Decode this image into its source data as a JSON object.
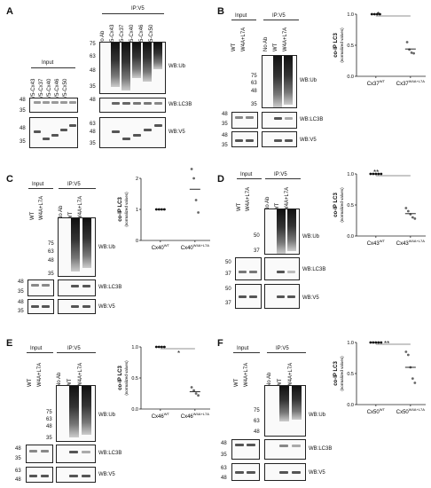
{
  "panels": {
    "A": {
      "label": "A",
      "input_header": "Input",
      "ip_header": "IP:V5",
      "input_lanes": [
        "V5-Cx43",
        "V5-Cx37",
        "V5-Cx40",
        "V5-Cx46",
        "V5-Cx50"
      ],
      "ip_lanes": [
        "No Ab",
        "V5-Cx43",
        "V5-Cx37",
        "V5-Cx40",
        "V5-Cx46",
        "V5-Cx50"
      ],
      "wb": [
        "WB:Ub",
        "WB:LC3B",
        "WB:V5"
      ],
      "mw_ub": [
        "75",
        "63",
        "48",
        "35"
      ],
      "mw_lc3": [
        "48",
        "35"
      ],
      "mw_v5_input": [
        "48",
        "35"
      ],
      "mw_v5_ip": [
        "63",
        "48",
        "35"
      ],
      "mw_lc3_input": [
        "48"
      ],
      "mw_v5_ip2": [
        "63",
        "48",
        "35"
      ]
    },
    "B": {
      "label": "B",
      "input_header": "Input",
      "ip_header": "IP:V5",
      "lanes": [
        "WT",
        "W4A+L7A",
        "No Ab",
        "WT",
        "W4A+L7A"
      ],
      "mw_ub": [
        "75",
        "63",
        "48",
        "35"
      ],
      "mw_lc3": [
        "48",
        "35"
      ],
      "mw_v5": [
        "48",
        "35"
      ],
      "wb": [
        "WB:Ub",
        "WB:LC3B",
        "WB:V5"
      ],
      "sig": "*"
    },
    "C": {
      "label": "C",
      "input_header": "Input",
      "ip_header": "IP:V5",
      "lanes": [
        "WT",
        "W4A+L7A",
        "No Ab",
        "WT",
        "W4A+L7A"
      ],
      "mw_ub": [
        "75",
        "63",
        "48",
        "35"
      ],
      "mw_lc3": [
        "48",
        "35"
      ],
      "mw_v5": [
        "48",
        "35"
      ],
      "wb": [
        "WB:Ub",
        "WB:LC3B",
        "WB:V5"
      ]
    },
    "D": {
      "label": "D",
      "input_header": "Input",
      "ip_header": "IP:V5",
      "lanes": [
        "WT",
        "W4A+L7A",
        "No Ab",
        "WT",
        "W4A+L7A"
      ],
      "mw_ub": [
        "50",
        "37"
      ],
      "mw_lc3": [
        "50",
        "37"
      ],
      "mw_v5": [
        "50",
        "37"
      ],
      "wb": [
        "WB:Ub",
        "WB:LC3B",
        "WB:V5"
      ],
      "sig": "**"
    },
    "E": {
      "label": "E",
      "input_header": "Input",
      "ip_header": "IP:V5",
      "lanes": [
        "WT",
        "W4A+L7A",
        "No Ab",
        "WT",
        "W4A+L7A"
      ],
      "mw_ub": [
        "75",
        "63",
        "48",
        "35"
      ],
      "mw_lc3": [
        "48",
        "35"
      ],
      "mw_v5": [
        "63",
        "48"
      ],
      "wb": [
        "WB:Ub",
        "WB:LC3B",
        "WB:V5"
      ],
      "sig": "*"
    },
    "F": {
      "label": "F",
      "input_header": "Input",
      "ip_header": "IP:V5",
      "lanes": [
        "WT",
        "W4A+L7A",
        "No Ab",
        "WT",
        "W4A+L7A"
      ],
      "mw_ub": [
        "75",
        "63",
        "48"
      ],
      "mw_lc3": [
        "48",
        "35"
      ],
      "mw_v5": [
        "63",
        "48"
      ],
      "wb": [
        "WB:Ub",
        "WB:LC3B",
        "WB:V5"
      ],
      "sig": "**"
    }
  },
  "chart_data": [
    {
      "panel": "B",
      "type": "scatter",
      "ylabel": "co-IP LC3",
      "ylabel2": "(normalized values)",
      "ylim": [
        0,
        1
      ],
      "yticks": [
        "0.0",
        "0.5",
        "1.0"
      ],
      "categories": [
        "Cx37",
        "Cx37"
      ],
      "cat_sup": [
        "WT",
        "W4A+L7A"
      ],
      "series": [
        {
          "values": [
            [
              1,
              1,
              1,
              1
            ],
            [
              0.55,
              0.43,
              0.38,
              0.37
            ]
          ],
          "means": [
            1.0,
            0.44
          ]
        }
      ]
    },
    {
      "panel": "C",
      "type": "scatter",
      "ylabel": "co-IP LC3",
      "ylabel2": "(normalized values)",
      "ylim": [
        0,
        2
      ],
      "yticks": [
        "0",
        "1",
        "2"
      ],
      "categories": [
        "Cx40",
        "Cx40"
      ],
      "cat_sup": [
        "WT",
        "W4A+L7A"
      ],
      "series": [
        {
          "values": [
            [
              1,
              1,
              1,
              1
            ],
            [
              2.3,
              2.0,
              1.3,
              0.9
            ]
          ],
          "means": [
            1.0,
            1.65
          ]
        }
      ]
    },
    {
      "panel": "D",
      "type": "scatter",
      "ylabel": "co-IP LC3",
      "ylabel2": "(normalized values)",
      "ylim": [
        0,
        1
      ],
      "yticks": [
        "0.0",
        "0.5",
        "1.0"
      ],
      "categories": [
        "Cx43",
        "Cx43"
      ],
      "cat_sup": [
        "WT",
        "W4A+L7A"
      ],
      "series": [
        {
          "values": [
            [
              1,
              1,
              1,
              1,
              1
            ],
            [
              0.45,
              0.4,
              0.35,
              0.3,
              0.28
            ]
          ],
          "means": [
            1.0,
            0.36
          ]
        }
      ]
    },
    {
      "panel": "E",
      "type": "scatter",
      "ylabel": "co-IP LC3",
      "ylabel2": "(normalized values)",
      "ylim": [
        0,
        1
      ],
      "yticks": [
        "0.0",
        "0.5",
        "1.0"
      ],
      "categories": [
        "Cx46",
        "Cx46"
      ],
      "cat_sup": [
        "WT",
        "W4A+L7A"
      ],
      "series": [
        {
          "values": [
            [
              1,
              1,
              1,
              1
            ],
            [
              0.35,
              0.3,
              0.25,
              0.22
            ]
          ],
          "means": [
            1.0,
            0.28
          ]
        }
      ]
    },
    {
      "panel": "F",
      "type": "scatter",
      "ylabel": "co-IP LC3",
      "ylabel2": "(normalized values)",
      "ylim": [
        0,
        1
      ],
      "yticks": [
        "0.0",
        "0.5",
        "1.0"
      ],
      "categories": [
        "Cx50",
        "Cx50"
      ],
      "cat_sup": [
        "WT",
        "W4A+L7A"
      ],
      "series": [
        {
          "values": [
            [
              1,
              1,
              1,
              1,
              1
            ],
            [
              0.85,
              0.8,
              0.6,
              0.42,
              0.35
            ]
          ],
          "means": [
            1.0,
            0.6
          ]
        }
      ]
    }
  ]
}
